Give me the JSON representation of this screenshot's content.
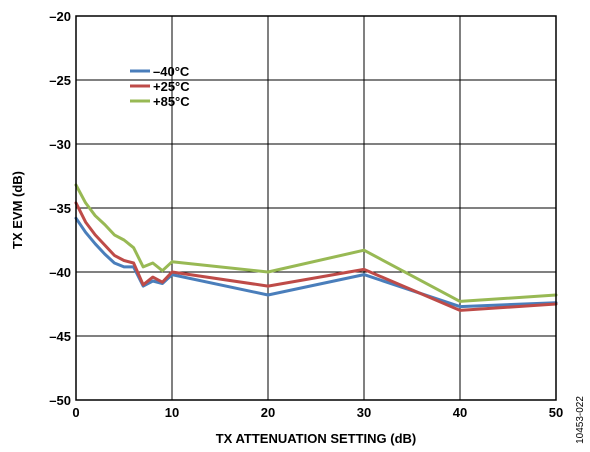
{
  "figure_id": "10453-022",
  "chart_data": {
    "type": "line",
    "xlabel": "TX ATTENUATION SETTING (dB)",
    "ylabel": "TX EVM (dB)",
    "xlim": [
      0,
      50
    ],
    "ylim": [
      -50,
      -20
    ],
    "xticks": [
      0,
      10,
      20,
      30,
      40,
      50
    ],
    "yticks": [
      -50,
      -45,
      -40,
      -35,
      -30,
      -25,
      -20
    ],
    "xtick_labels": [
      "0",
      "10",
      "20",
      "30",
      "40",
      "50"
    ],
    "ytick_labels": [
      "–50",
      "–45",
      "–40",
      "–35",
      "–30",
      "–25",
      "–20"
    ],
    "grid": true,
    "legend_position": "upper-left",
    "series": [
      {
        "name": "–40°C",
        "color": "#4a7ebb",
        "x": [
          0,
          1,
          2,
          3,
          4,
          5,
          6,
          7,
          8,
          9,
          10,
          20,
          30,
          40,
          50
        ],
        "y": [
          -35.8,
          -36.9,
          -37.8,
          -38.6,
          -39.3,
          -39.6,
          -39.6,
          -41.1,
          -40.7,
          -40.9,
          -40.2,
          -41.8,
          -40.2,
          -42.7,
          -42.4
        ]
      },
      {
        "name": "+25°C",
        "color": "#be4b48",
        "x": [
          0,
          1,
          2,
          3,
          4,
          5,
          6,
          7,
          8,
          9,
          10,
          20,
          30,
          40,
          50
        ],
        "y": [
          -34.6,
          -36.1,
          -37.1,
          -37.9,
          -38.7,
          -39.1,
          -39.3,
          -41.0,
          -40.4,
          -40.8,
          -40.0,
          -41.1,
          -39.8,
          -43.0,
          -42.5
        ]
      },
      {
        "name": "+85°C",
        "color": "#98b954",
        "x": [
          0,
          1,
          2,
          3,
          4,
          5,
          6,
          7,
          8,
          9,
          10,
          20,
          30,
          40,
          50
        ],
        "y": [
          -33.2,
          -34.6,
          -35.6,
          -36.3,
          -37.1,
          -37.5,
          -38.1,
          -39.6,
          -39.3,
          -39.9,
          -39.2,
          -40.0,
          -38.3,
          -42.3,
          -41.8
        ]
      }
    ]
  }
}
